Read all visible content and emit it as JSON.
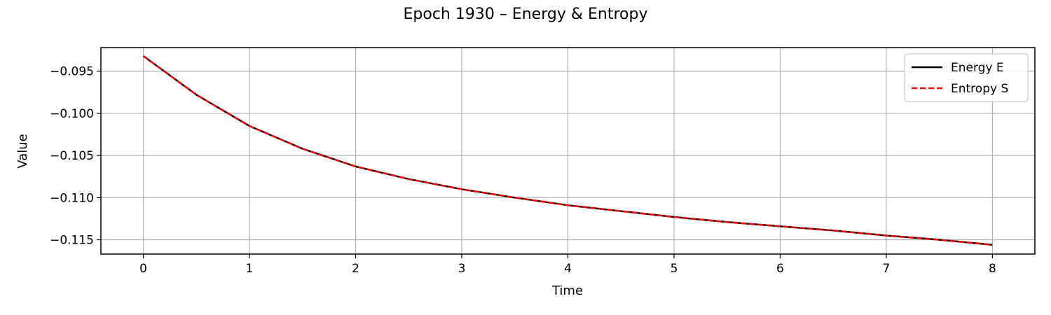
{
  "chart_data": {
    "type": "line",
    "title": "Epoch 1930 – Energy & Entropy",
    "xlabel": "Time",
    "ylabel": "Value",
    "xlim": [
      -0.4,
      8.4
    ],
    "ylim": [
      -0.1167,
      -0.0922
    ],
    "xticks": [
      0,
      1,
      2,
      3,
      4,
      5,
      6,
      7,
      8
    ],
    "xtick_labels": [
      "0",
      "1",
      "2",
      "3",
      "4",
      "5",
      "6",
      "7",
      "8"
    ],
    "yticks": [
      -0.095,
      -0.1,
      -0.105,
      -0.11,
      -0.115
    ],
    "ytick_labels": [
      "−0.095",
      "−0.100",
      "−0.105",
      "−0.110",
      "−0.115"
    ],
    "grid": true,
    "legend_position": "top-right",
    "x": [
      0,
      0.5,
      1,
      1.5,
      2,
      2.5,
      3,
      3.5,
      4,
      4.5,
      5,
      5.5,
      6,
      6.5,
      7,
      7.5,
      8
    ],
    "series": [
      {
        "name": "Energy E",
        "color": "#000000",
        "style": "solid",
        "values": [
          -0.0932,
          -0.0978,
          -0.1015,
          -0.1042,
          -0.1063,
          -0.1078,
          -0.109,
          -0.11,
          -0.1109,
          -0.1116,
          -0.1123,
          -0.1129,
          -0.1134,
          -0.1139,
          -0.1145,
          -0.115,
          -0.1156
        ]
      },
      {
        "name": "Entropy S",
        "color": "#ff0000",
        "style": "dashed",
        "values": [
          -0.0932,
          -0.0978,
          -0.1015,
          -0.1042,
          -0.1063,
          -0.1078,
          -0.109,
          -0.11,
          -0.1109,
          -0.1116,
          -0.1123,
          -0.1129,
          -0.1134,
          -0.1139,
          -0.1145,
          -0.115,
          -0.1156
        ]
      }
    ]
  }
}
